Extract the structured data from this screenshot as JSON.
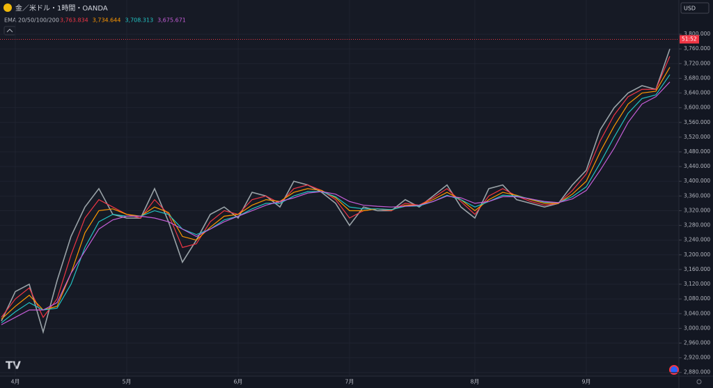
{
  "chart_data": {
    "type": "line",
    "title": "金／米ドル・1時間・OANDA",
    "currency": "USD",
    "indicator": "EMA 20/50/100/200",
    "countdown": "51:52",
    "categories": [
      null,
      "4月",
      null,
      null,
      null,
      null,
      null,
      null,
      null,
      "5月",
      null,
      null,
      null,
      null,
      null,
      null,
      null,
      "6月",
      null,
      null,
      null,
      null,
      null,
      null,
      null,
      "7月",
      null,
      null,
      null,
      null,
      null,
      null,
      null,
      null,
      "8月",
      null,
      null,
      null,
      null,
      null,
      null,
      null,
      "9月",
      null,
      null,
      null,
      null,
      null,
      null
    ],
    "last_price": 3786,
    "series": [
      {
        "color": "#9aa3a8",
        "values": [
          3020,
          3100,
          3120,
          2990,
          3130,
          3250,
          3330,
          3380,
          3310,
          3300,
          3300,
          3380,
          3290,
          3180,
          3240,
          3310,
          3330,
          3300,
          3370,
          3360,
          3330,
          3400,
          3390,
          3370,
          3340,
          3280,
          3330,
          3320,
          3320,
          3350,
          3330,
          3360,
          3390,
          3330,
          3300,
          3380,
          3390,
          3350,
          3340,
          3330,
          3340,
          3390,
          3430,
          3540,
          3600,
          3640,
          3660,
          3650,
          3760
        ]
      },
      {
        "color": "#f23645",
        "value_label": "3,763.834",
        "values": [
          3030,
          3080,
          3110,
          3030,
          3080,
          3200,
          3300,
          3350,
          3330,
          3310,
          3300,
          3350,
          3310,
          3220,
          3230,
          3290,
          3320,
          3310,
          3350,
          3360,
          3340,
          3380,
          3390,
          3375,
          3350,
          3300,
          3320,
          3325,
          3320,
          3340,
          3335,
          3355,
          3380,
          3345,
          3310,
          3360,
          3380,
          3360,
          3345,
          3335,
          3340,
          3375,
          3420,
          3510,
          3580,
          3630,
          3650,
          3650,
          3740
        ]
      },
      {
        "color": "#ff9800",
        "value_label": "3,734.644",
        "values": [
          3025,
          3060,
          3090,
          3050,
          3060,
          3150,
          3260,
          3320,
          3325,
          3310,
          3305,
          3330,
          3315,
          3250,
          3240,
          3275,
          3305,
          3310,
          3335,
          3350,
          3345,
          3370,
          3380,
          3375,
          3355,
          3320,
          3320,
          3325,
          3322,
          3335,
          3335,
          3350,
          3370,
          3350,
          3320,
          3350,
          3370,
          3362,
          3350,
          3340,
          3340,
          3365,
          3400,
          3480,
          3550,
          3610,
          3640,
          3645,
          3710
        ]
      },
      {
        "color": "#22c3c3",
        "value_label": "3,708.313",
        "values": [
          3015,
          3045,
          3070,
          3050,
          3055,
          3120,
          3220,
          3290,
          3310,
          3305,
          3305,
          3320,
          3310,
          3270,
          3255,
          3270,
          3295,
          3305,
          3325,
          3340,
          3340,
          3360,
          3372,
          3372,
          3358,
          3330,
          3325,
          3325,
          3323,
          3332,
          3333,
          3345,
          3362,
          3350,
          3330,
          3345,
          3362,
          3360,
          3352,
          3343,
          3342,
          3358,
          3385,
          3450,
          3520,
          3585,
          3625,
          3635,
          3690
        ]
      },
      {
        "color": "#c55ed8",
        "value_label": "3,675.671",
        "values": [
          3010,
          3030,
          3050,
          3050,
          3070,
          3150,
          3210,
          3270,
          3295,
          3305,
          3305,
          3300,
          3290,
          3270,
          3250,
          3270,
          3290,
          3305,
          3320,
          3335,
          3345,
          3355,
          3368,
          3372,
          3365,
          3345,
          3335,
          3332,
          3330,
          3332,
          3335,
          3345,
          3360,
          3355,
          3340,
          3345,
          3358,
          3358,
          3352,
          3345,
          3342,
          3352,
          3375,
          3430,
          3490,
          3560,
          3610,
          3630,
          3670
        ]
      }
    ],
    "ylim": [
      2870,
      3893
    ],
    "yticks": [
      {
        "value": 2880,
        "label": "2,880.000"
      },
      {
        "value": 2920,
        "label": "2,920.000"
      },
      {
        "value": 2960,
        "label": "2,960.000"
      },
      {
        "value": 3000,
        "label": "3,000.000"
      },
      {
        "value": 3040,
        "label": "3,040.000"
      },
      {
        "value": 3080,
        "label": "3,080.000"
      },
      {
        "value": 3120,
        "label": "3,120.000"
      },
      {
        "value": 3160,
        "label": "3,160.000"
      },
      {
        "value": 3200,
        "label": "3,200.000"
      },
      {
        "value": 3240,
        "label": "3,240.000"
      },
      {
        "value": 3280,
        "label": "3,280.000"
      },
      {
        "value": 3320,
        "label": "3,320.000"
      },
      {
        "value": 3360,
        "label": "3,360.000"
      },
      {
        "value": 3400,
        "label": "3,400.000"
      },
      {
        "value": 3440,
        "label": "3,440.000"
      },
      {
        "value": 3480,
        "label": "3,480.000"
      },
      {
        "value": 3520,
        "label": "3,520.000"
      },
      {
        "value": 3560,
        "label": "3,560.000"
      },
      {
        "value": 3600,
        "label": "3,600.000"
      },
      {
        "value": 3640,
        "label": "3,640.000"
      },
      {
        "value": 3680,
        "label": "3,680.000"
      },
      {
        "value": 3720,
        "label": "3,720.000"
      },
      {
        "value": 3760,
        "label": "3,760.000"
      },
      {
        "value": 3800,
        "label": "3,800.000"
      }
    ],
    "grid": true
  }
}
